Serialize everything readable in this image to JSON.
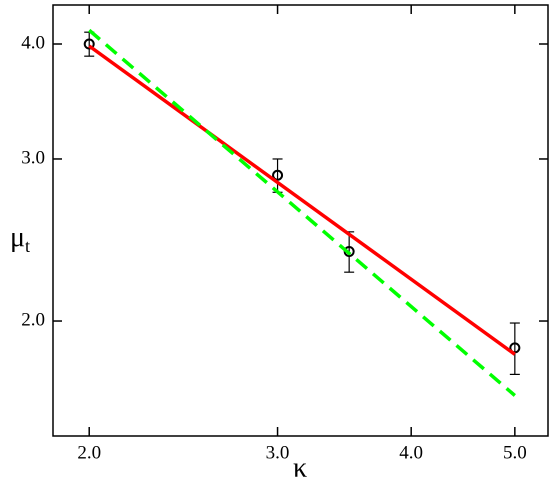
{
  "chart_data": {
    "type": "line",
    "xlabel": "κ",
    "ylabel": {
      "symbol": "μ",
      "subscript": "t"
    },
    "xscale": "log",
    "yscale": "log",
    "xlim": [
      1.85,
      5.37
    ],
    "ylim": [
      1.5,
      4.41
    ],
    "xticks": [
      {
        "value": 2,
        "label": "2.0"
      },
      {
        "value": 3,
        "label": "3.0"
      },
      {
        "value": 4,
        "label": "4.0"
      },
      {
        "value": 5,
        "label": "5.0"
      }
    ],
    "yticks": [
      {
        "value": 2,
        "label": "2.0"
      },
      {
        "value": 3,
        "label": "3.0"
      },
      {
        "value": 4,
        "label": "4.0"
      }
    ],
    "series": [
      {
        "style": "marker",
        "color": "#000000",
        "x": [
          2,
          3,
          3.5,
          5
        ],
        "values": [
          4.0,
          2.88,
          2.38,
          1.87
        ],
        "errors": [
          0.12,
          0.12,
          0.12,
          0.12
        ]
      },
      {
        "style": "solid",
        "color": "#ff0000",
        "x": [
          2,
          5
        ],
        "values": [
          3.98,
          1.84
        ]
      },
      {
        "style": "dashed",
        "color": "#00ff00",
        "x": [
          2,
          5
        ],
        "values": [
          4.14,
          1.66
        ]
      }
    ]
  }
}
